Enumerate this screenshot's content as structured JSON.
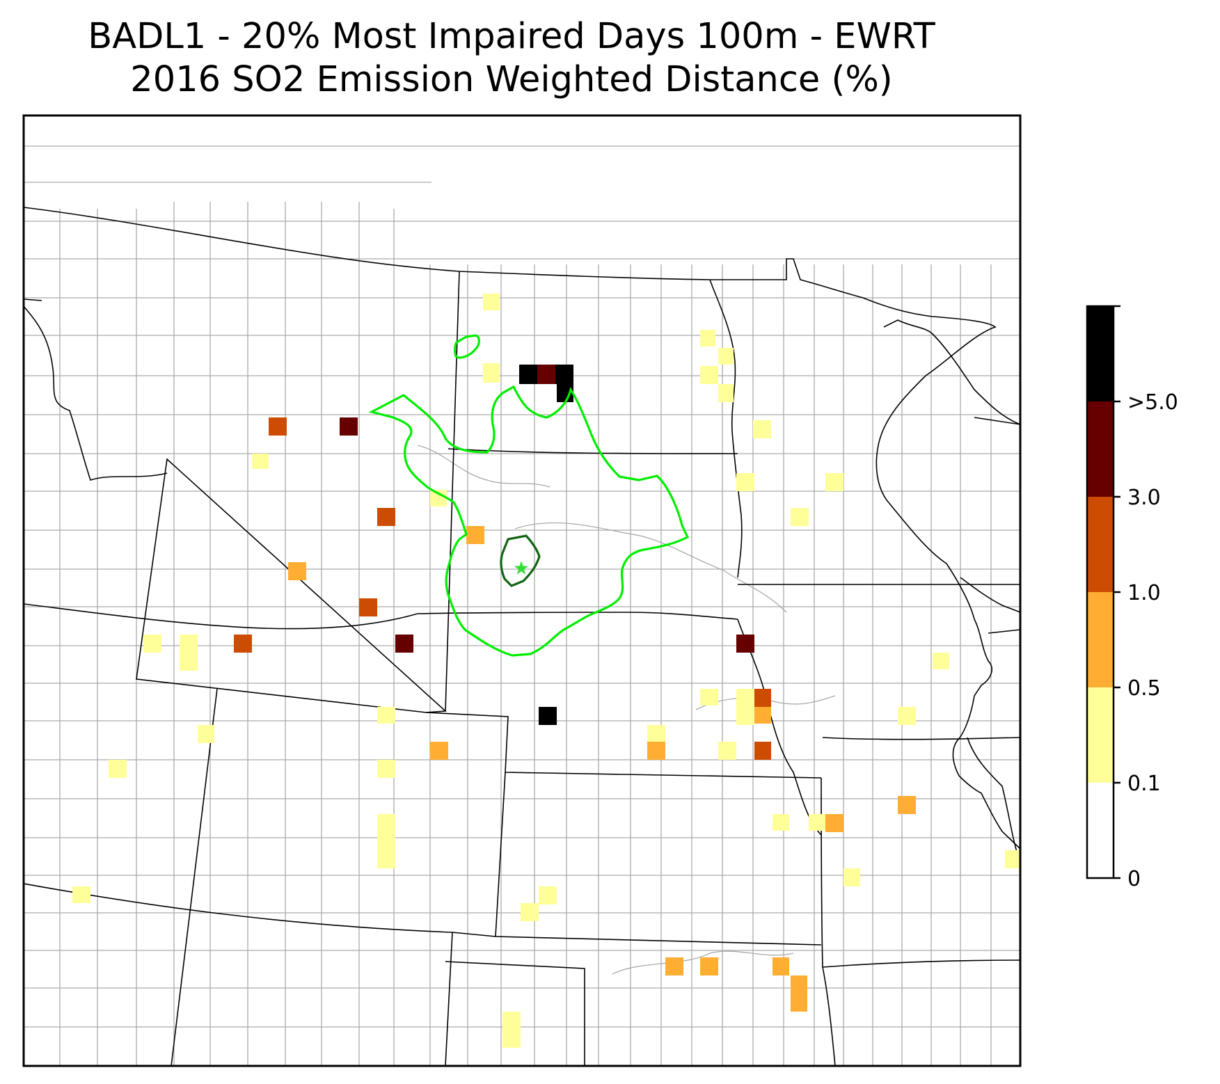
{
  "title": {
    "line1": "BADL1 - 20% Most Impaired Days 100m - EWRT",
    "line2": "2016 SO2 Emission Weighted Distance (%)"
  },
  "colorbar": {
    "tick_labels": [
      ">5.0",
      "3.0",
      "1.0",
      "0.5",
      "0.1",
      "0"
    ],
    "bins": [
      {
        "range": "0 - 0.1",
        "color": "#ffffff"
      },
      {
        "range": "0.1 - 0.5",
        "color": "#ffff99"
      },
      {
        "range": "0.5 - 1.0",
        "color": "#ffad33"
      },
      {
        "range": "1.0 - 3.0",
        "color": "#cc4c02"
      },
      {
        "range": "3.0 - 5.0",
        "color": "#660000"
      },
      {
        "range": ">5.0",
        "color": "#000000"
      }
    ]
  },
  "colors": {
    "contour_outer": "#00ee00",
    "contour_inner": "#116611",
    "site_marker": "#33dd33",
    "county_lines": "#aaaaaa",
    "state_lines": "#000000"
  },
  "site_marker_icon": "star-icon"
}
